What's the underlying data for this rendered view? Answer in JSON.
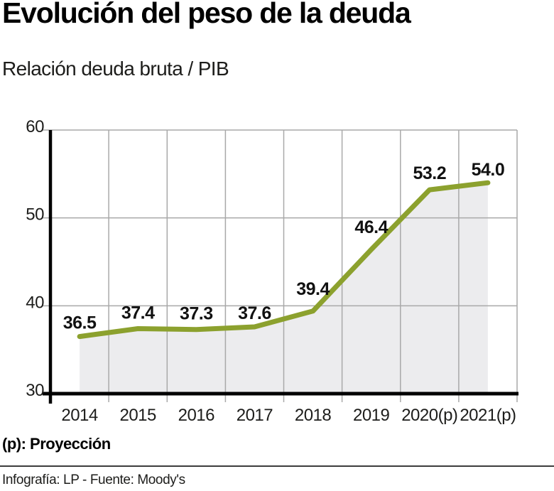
{
  "chart_data": {
    "type": "area",
    "title": "Evolución del peso de la deuda",
    "subtitle": "Relación deuda bruta / PIB",
    "categories": [
      "2014",
      "2015",
      "2016",
      "2017",
      "2018",
      "2019",
      "2020(p)",
      "2021(p)"
    ],
    "values": [
      36.5,
      37.4,
      37.3,
      37.6,
      39.4,
      46.4,
      53.2,
      54.0
    ],
    "value_labels": [
      "36.5",
      "37.4",
      "37.3",
      "37.6",
      "39.4",
      "46.4",
      "53.2",
      "54.0"
    ],
    "xlabel": "",
    "ylabel": "",
    "ylim": [
      30,
      60
    ],
    "yticks": [
      30,
      40,
      50,
      60
    ],
    "grid": true,
    "legend": false,
    "line_color": "#8ca12e",
    "area_color": "#ececee",
    "grid_color": "#a9a9a9",
    "axis_color": "#000000",
    "text_color": "#1d1d1b",
    "value_label_color": "#111111"
  },
  "footnote": "(p): Proyección",
  "credit": "Infografía: LP - Fuente: Moody's"
}
